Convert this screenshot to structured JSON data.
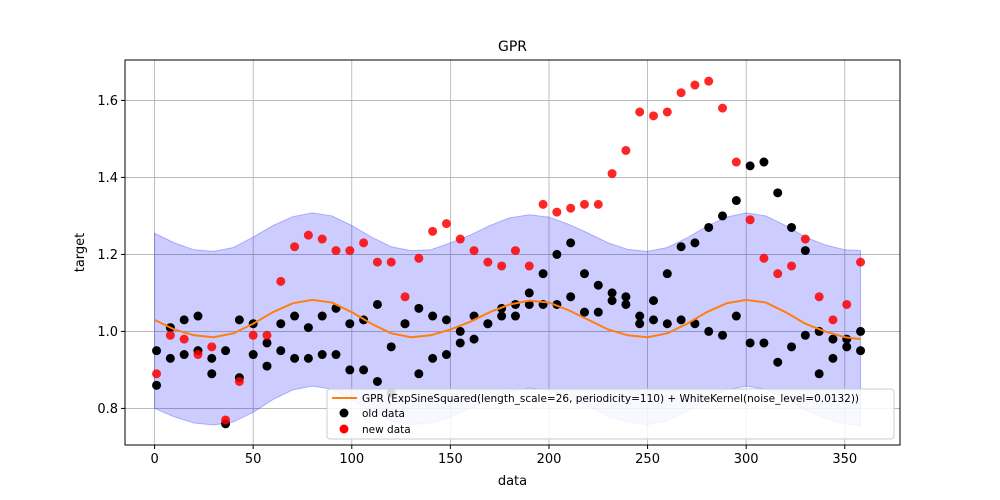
{
  "chart_data": {
    "type": "scatter",
    "title": "GPR",
    "xlabel": "data",
    "ylabel": "target",
    "xlim": [
      -15,
      378
    ],
    "ylim": [
      0.705,
      1.705
    ],
    "xticks": [
      0,
      50,
      100,
      150,
      200,
      250,
      300,
      350
    ],
    "yticks": [
      0.8,
      1.0,
      1.2,
      1.4,
      1.6
    ],
    "grid": true,
    "legend_position": "lower-right",
    "colors": {
      "fit": "#ff7f0e",
      "band": "#0000ff",
      "old": "#000000",
      "new": "#ff0000"
    },
    "fit": {
      "name": "GPR (ExpSineSquared(length_scale=26, periodicity=110) + WhiteKernel(noise_level=0.0132))",
      "x": [
        0,
        10,
        20,
        30,
        40,
        50,
        60,
        70,
        80,
        90,
        100,
        110,
        120,
        130,
        140,
        150,
        160,
        170,
        180,
        190,
        200,
        210,
        220,
        230,
        240,
        250,
        260,
        270,
        280,
        290,
        300,
        310,
        320,
        330,
        340,
        350,
        358
      ],
      "y": [
        1.03,
        1.005,
        0.99,
        0.985,
        0.995,
        1.02,
        1.05,
        1.073,
        1.082,
        1.075,
        1.05,
        1.02,
        0.995,
        0.985,
        0.99,
        1.005,
        1.025,
        1.05,
        1.07,
        1.08,
        1.075,
        1.055,
        1.03,
        1.005,
        0.99,
        0.985,
        0.995,
        1.02,
        1.05,
        1.073,
        1.082,
        1.075,
        1.05,
        1.02,
        1.0,
        0.985,
        0.98
      ],
      "upper": [
        1.255,
        1.23,
        1.212,
        1.208,
        1.218,
        1.245,
        1.275,
        1.298,
        1.308,
        1.3,
        1.275,
        1.245,
        1.22,
        1.21,
        1.212,
        1.23,
        1.25,
        1.275,
        1.295,
        1.303,
        1.297,
        1.278,
        1.255,
        1.23,
        1.213,
        1.208,
        1.218,
        1.243,
        1.273,
        1.297,
        1.308,
        1.3,
        1.275,
        1.245,
        1.225,
        1.212,
        1.21
      ],
      "lower": [
        0.8,
        0.778,
        0.762,
        0.757,
        0.765,
        0.79,
        0.823,
        0.848,
        0.858,
        0.85,
        0.823,
        0.793,
        0.768,
        0.758,
        0.762,
        0.778,
        0.8,
        0.823,
        0.843,
        0.853,
        0.848,
        0.83,
        0.805,
        0.78,
        0.765,
        0.758,
        0.768,
        0.793,
        0.823,
        0.848,
        0.858,
        0.85,
        0.825,
        0.795,
        0.775,
        0.76,
        0.755
      ]
    },
    "series": [
      {
        "name": "old data",
        "x": [
          1,
          1,
          8,
          8,
          15,
          15,
          22,
          22,
          29,
          29,
          36,
          36,
          43,
          43,
          50,
          50,
          57,
          57,
          64,
          64,
          71,
          71,
          78,
          78,
          85,
          85,
          92,
          92,
          99,
          99,
          106,
          106,
          113,
          113,
          120,
          120,
          127,
          127,
          134,
          134,
          141,
          141,
          148,
          148,
          155,
          155,
          162,
          162,
          169,
          169,
          176,
          176,
          183,
          183,
          190,
          190,
          197,
          197,
          204,
          204,
          211,
          211,
          218,
          218,
          225,
          225,
          232,
          232,
          239,
          239,
          246,
          246,
          253,
          253,
          260,
          260,
          267,
          267,
          274,
          274,
          281,
          281,
          288,
          288,
          295,
          295,
          302,
          302,
          309,
          309,
          316,
          316,
          323,
          323,
          330,
          330,
          337,
          337,
          344,
          344,
          351,
          351,
          358,
          358
        ],
        "y": [
          0.86,
          0.95,
          1.01,
          0.93,
          0.94,
          1.03,
          1.04,
          0.95,
          0.89,
          0.93,
          0.95,
          0.76,
          0.88,
          1.03,
          1.02,
          0.94,
          0.97,
          0.91,
          1.02,
          0.95,
          1.04,
          0.93,
          0.93,
          1.01,
          1.04,
          0.94,
          1.06,
          0.94,
          0.9,
          1.02,
          1.03,
          0.9,
          1.07,
          0.87,
          0.96,
          0.84,
          1.02,
          1.02,
          1.06,
          0.89,
          1.04,
          0.93,
          0.94,
          1.03,
          0.97,
          1.0,
          1.04,
          0.98,
          1.02,
          1.02,
          1.04,
          1.06,
          1.04,
          1.07,
          1.07,
          1.1,
          1.07,
          1.15,
          1.07,
          1.2,
          1.23,
          1.09,
          1.15,
          1.05,
          1.05,
          1.12,
          1.08,
          1.1,
          1.09,
          1.07,
          1.04,
          1.02,
          1.08,
          1.03,
          1.02,
          1.15,
          1.22,
          1.03,
          1.23,
          1.02,
          1.27,
          1.0,
          1.3,
          0.99,
          1.34,
          1.04,
          1.43,
          0.97,
          1.44,
          0.97,
          1.36,
          0.92,
          1.27,
          0.96,
          1.21,
          0.99,
          1.0,
          0.89,
          0.93,
          0.98,
          0.96,
          0.98,
          0.95,
          1.0
        ]
      },
      {
        "name": "new data",
        "x": [
          1,
          8,
          15,
          22,
          29,
          36,
          43,
          50,
          57,
          64,
          71,
          78,
          85,
          92,
          99,
          106,
          113,
          120,
          127,
          134,
          141,
          148,
          155,
          162,
          169,
          176,
          183,
          190,
          197,
          204,
          211,
          218,
          225,
          232,
          239,
          246,
          253,
          260,
          267,
          274,
          281,
          288,
          295,
          302,
          309,
          316,
          323,
          330,
          337,
          344,
          351,
          358
        ],
        "y": [
          0.89,
          0.99,
          0.98,
          0.94,
          0.96,
          0.77,
          0.87,
          0.99,
          0.99,
          1.13,
          1.22,
          1.25,
          1.24,
          1.21,
          1.21,
          1.23,
          1.18,
          1.18,
          1.09,
          1.19,
          1.26,
          1.28,
          1.24,
          1.21,
          1.18,
          1.17,
          1.21,
          1.17,
          1.33,
          1.31,
          1.32,
          1.33,
          1.33,
          1.41,
          1.47,
          1.57,
          1.56,
          1.57,
          1.62,
          1.64,
          1.65,
          1.58,
          1.44,
          1.29,
          1.19,
          1.15,
          1.17,
          1.24,
          1.09,
          1.03,
          1.07,
          1.18
        ]
      }
    ]
  }
}
